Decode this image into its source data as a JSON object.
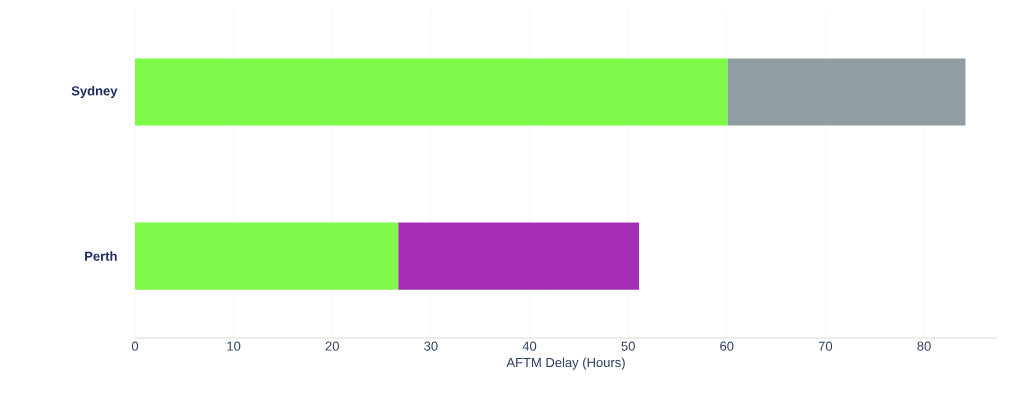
{
  "chart_data": {
    "type": "bar",
    "orientation": "horizontal",
    "stacked": true,
    "categories": [
      "Sydney",
      "Perth"
    ],
    "series": [
      {
        "color": "#7ff94a",
        "values": [
          60.1,
          26.7
        ]
      },
      {
        "color": "#8f9ea3",
        "values": [
          24.1,
          null
        ]
      },
      {
        "color": "#a52db3",
        "values": [
          null,
          24.4
        ]
      }
    ],
    "xlabel": "AFTM Delay (Hours)",
    "xlim": [
      0,
      87.4
    ],
    "xticks": [
      0,
      10,
      20,
      30,
      40,
      50,
      60,
      70,
      80
    ],
    "grid": "x"
  }
}
